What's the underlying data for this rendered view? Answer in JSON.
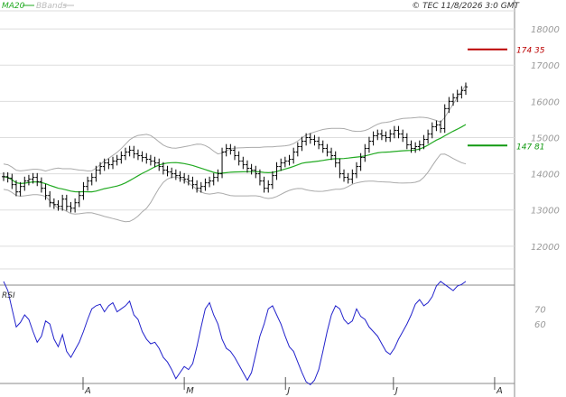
{
  "header": {
    "legend_ma": "MA20",
    "legend_bbands": "BBands",
    "copyright": "© TEC 11/8/2026 3:0 GMT"
  },
  "colors": {
    "price": "#000000",
    "ma": "#22aa22",
    "bbands": "#aaaaaa",
    "rsi": "#2222cc",
    "resistance": "#bb0000",
    "support": "#119911",
    "grid": "#dddddd"
  },
  "chart_data": [
    {
      "type": "ohlc",
      "ylim": [
        11000,
        18500
      ],
      "yticks": [
        "18000",
        "17000",
        "16000",
        "15000",
        "14000",
        "13000",
        "12000"
      ],
      "ytick_values": [
        18000,
        17000,
        16000,
        15000,
        14000,
        13000,
        12000
      ],
      "months": [
        "A",
        "M",
        "J",
        "J",
        "A"
      ],
      "month_positions": [
        0.0,
        30,
        60,
        92,
        122
      ],
      "x_max": 137,
      "levels": [
        {
          "label": "174 35",
          "value": 17435,
          "kind": "resistance"
        },
        {
          "label": "147 81",
          "value": 14781,
          "kind": "support"
        }
      ],
      "close": [
        13920,
        13880,
        13700,
        13500,
        13650,
        13800,
        13850,
        13900,
        13780,
        13600,
        13400,
        13200,
        13150,
        13100,
        13300,
        13100,
        13050,
        13200,
        13400,
        13650,
        13800,
        13900,
        14100,
        14200,
        14300,
        14250,
        14350,
        14400,
        14500,
        14600,
        14650,
        14550,
        14500,
        14450,
        14400,
        14350,
        14300,
        14200,
        14100,
        14050,
        14000,
        13950,
        13900,
        13850,
        13800,
        13700,
        13600,
        13650,
        13750,
        13800,
        13900,
        14000,
        14600,
        14700,
        14650,
        14500,
        14350,
        14250,
        14150,
        14100,
        14000,
        13800,
        13600,
        13700,
        13950,
        14200,
        14300,
        14350,
        14400,
        14600,
        14750,
        14900,
        15000,
        14950,
        14900,
        14800,
        14700,
        14600,
        14500,
        14300,
        14000,
        13900,
        13850,
        14000,
        14200,
        14450,
        14700,
        14900,
        15050,
        15100,
        15050,
        15000,
        15100,
        15200,
        15100,
        15000,
        14800,
        14700,
        14750,
        14800,
        14950,
        15100,
        15300,
        15350,
        15250,
        15800,
        16000,
        16100,
        16200,
        16300,
        16400
      ],
      "rsi": [
        88,
        82,
        70,
        58,
        61,
        66,
        63,
        55,
        48,
        52,
        62,
        60,
        50,
        45,
        53,
        42,
        38,
        43,
        48,
        55,
        63,
        70,
        72,
        73,
        68,
        72,
        74,
        68,
        70,
        72,
        75,
        66,
        63,
        55,
        50,
        47,
        48,
        44,
        38,
        35,
        30,
        24,
        28,
        32,
        30,
        34,
        45,
        58,
        70,
        74,
        66,
        60,
        50,
        44,
        42,
        38,
        33,
        28,
        23,
        28,
        40,
        52,
        60,
        70,
        72,
        66,
        60,
        52,
        45,
        42,
        35,
        28,
        22,
        20,
        23,
        30,
        42,
        55,
        66,
        72,
        70,
        63,
        60,
        62,
        70,
        65,
        63,
        58,
        55,
        52,
        47,
        42,
        40,
        44,
        50,
        55,
        60,
        66,
        73,
        76,
        72,
        74,
        78,
        85,
        88,
        86,
        84,
        82,
        85,
        86,
        88
      ],
      "rsi_ticks": [
        "70",
        "60"
      ],
      "rsi_tick_values": [
        70,
        60
      ],
      "rsi_label": "RSI",
      "rsi_ylim": [
        25,
        85
      ]
    }
  ]
}
